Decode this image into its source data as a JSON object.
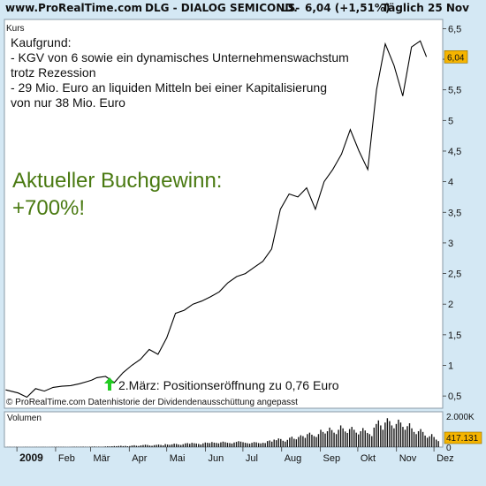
{
  "header": {
    "site": "www.ProRealTime.com",
    "instrument": "DLG - DIALOG SEMICOND.",
    "exchange": "LS-",
    "quote": "6,04 (+1,51%)",
    "period": "Täglich",
    "date": "25 Nov"
  },
  "price_panel": {
    "label": "Kurs",
    "last_price_label": "6,04",
    "footer_note": "© ProRealTime.com Datenhistorie der Dividendenausschüttung angepasst"
  },
  "annotations": {
    "reason_lines": [
      "Kaufgrund:",
      " - KGV von 6 sowie ein dynamisches Unternehmenswachstum",
      "trotz Rezession",
      " - 29 Mio. Euro an liquiden Mitteln bei einer Kapitalisierung",
      "von nur 38 Mio. Euro"
    ],
    "gain_line1": "Aktueller Buchgewinn:",
    "gain_line2": "+700%!",
    "entry_note": "2.März: Positionseröffnung zu 0,76 Euro"
  },
  "volume_panel": {
    "label": "Volumen",
    "max_label": "2.000K",
    "zero_label": "0",
    "last_volume_label": "417.131"
  },
  "colors": {
    "background": "#d4e8f4",
    "panel": "#ffffff",
    "price_line": "#000000",
    "gain_text": "#4a7a12",
    "entry_arrow": "#22cc22",
    "last_price_box": "#f5b400"
  },
  "chart_data": [
    {
      "type": "line",
      "title": "DLG - DIALOG SEMICOND. LS-",
      "ylabel": "Kurs",
      "x_tick_labels": [
        "2009",
        "Feb",
        "Mär",
        "Apr",
        "Mai",
        "Jun",
        "Jul",
        "Aug",
        "Sep",
        "Okt",
        "Nov",
        "Dez"
      ],
      "y_tick_labels": [
        "0,5",
        "1",
        "1,5",
        "2",
        "2,5",
        "3",
        "3,5",
        "4",
        "4,5",
        "5",
        "5,5",
        "6",
        "6,5"
      ],
      "ylim": [
        0.3,
        6.65
      ],
      "grid": false,
      "legend": "none",
      "series": [
        {
          "x": [
            "2008-12-23",
            "2009-01-02",
            "2009-01-09",
            "2009-01-16",
            "2009-01-23",
            "2009-01-30",
            "2009-02-06",
            "2009-02-13",
            "2009-02-20",
            "2009-02-27",
            "2009-03-02",
            "2009-03-06",
            "2009-03-13",
            "2009-03-20",
            "2009-03-27",
            "2009-04-03",
            "2009-04-10",
            "2009-04-17",
            "2009-04-24",
            "2009-05-01",
            "2009-05-08",
            "2009-05-15",
            "2009-05-22",
            "2009-05-29",
            "2009-06-05",
            "2009-06-12",
            "2009-06-19",
            "2009-06-26",
            "2009-07-03",
            "2009-07-10",
            "2009-07-17",
            "2009-07-24",
            "2009-07-31",
            "2009-08-07",
            "2009-08-14",
            "2009-08-21",
            "2009-08-28",
            "2009-09-04",
            "2009-09-11",
            "2009-09-18",
            "2009-09-25",
            "2009-10-02",
            "2009-10-09",
            "2009-10-16",
            "2009-10-23",
            "2009-10-30",
            "2009-11-06",
            "2009-11-13",
            "2009-11-20",
            "2009-11-25"
          ],
          "values": [
            0.6,
            0.55,
            0.48,
            0.62,
            0.58,
            0.64,
            0.66,
            0.67,
            0.7,
            0.74,
            0.76,
            0.8,
            0.82,
            0.72,
            0.88,
            1.0,
            1.1,
            1.26,
            1.18,
            1.45,
            1.85,
            1.9,
            2.0,
            2.05,
            2.12,
            2.2,
            2.35,
            2.45,
            2.5,
            2.6,
            2.7,
            2.9,
            3.55,
            3.8,
            3.75,
            3.9,
            3.55,
            4.0,
            4.2,
            4.45,
            4.85,
            4.5,
            4.2,
            5.5,
            6.25,
            5.9,
            5.4,
            6.2,
            6.3,
            6.04
          ]
        }
      ]
    },
    {
      "type": "bar",
      "ylabel": "Volumen",
      "y_tick_labels": [
        "2.000K",
        "0"
      ],
      "ylim": [
        0,
        2200
      ],
      "y_unit": "K",
      "values": [
        10,
        14,
        8,
        12,
        18,
        10,
        7,
        9,
        15,
        12,
        10,
        8,
        11,
        14,
        9,
        12,
        15,
        11,
        8,
        12,
        16,
        18,
        22,
        20,
        15,
        18,
        12,
        10,
        14,
        22,
        28,
        24,
        20,
        25,
        30,
        22,
        18,
        26,
        35,
        40,
        28,
        32,
        25,
        30,
        45,
        55,
        48,
        60,
        72,
        65,
        80,
        95,
        70,
        85,
        60,
        75,
        110,
        130,
        95,
        80,
        120,
        145,
        170,
        150,
        110,
        95,
        140,
        160,
        180,
        150,
        120,
        210,
        180,
        160,
        190,
        240,
        220,
        180,
        150,
        200,
        260,
        280,
        230,
        300,
        270,
        250,
        220,
        180,
        260,
        320,
        300,
        280,
        350,
        310,
        290,
        260,
        330,
        380,
        340,
        300,
        280,
        250,
        320,
        360,
        410,
        380,
        340,
        300,
        270,
        240,
        300,
        350,
        330,
        280,
        260,
        300,
        280,
        420,
        460,
        380,
        520,
        480,
        600,
        560,
        440,
        380,
        500,
        650,
        720,
        580,
        540,
        700,
        820,
        760,
        640,
        900,
        1000,
        860,
        760,
        700,
        900,
        1200,
        1050,
        940,
        1100,
        1350,
        1180,
        1000,
        900,
        1200,
        1500,
        1300,
        1080,
        980,
        1250,
        1400,
        1200,
        1000,
        880,
        1100,
        1320,
        1150,
        980,
        900,
        760,
        1350,
        1600,
        1850,
        1500,
        1200,
        1700,
        2000,
        1800,
        1500,
        1300,
        1600,
        1900,
        1700,
        1400,
        1200,
        1450,
        1650,
        1300,
        1050,
        900,
        1100,
        1250,
        1050,
        800,
        650,
        750,
        900,
        700,
        520,
        417
      ]
    }
  ]
}
